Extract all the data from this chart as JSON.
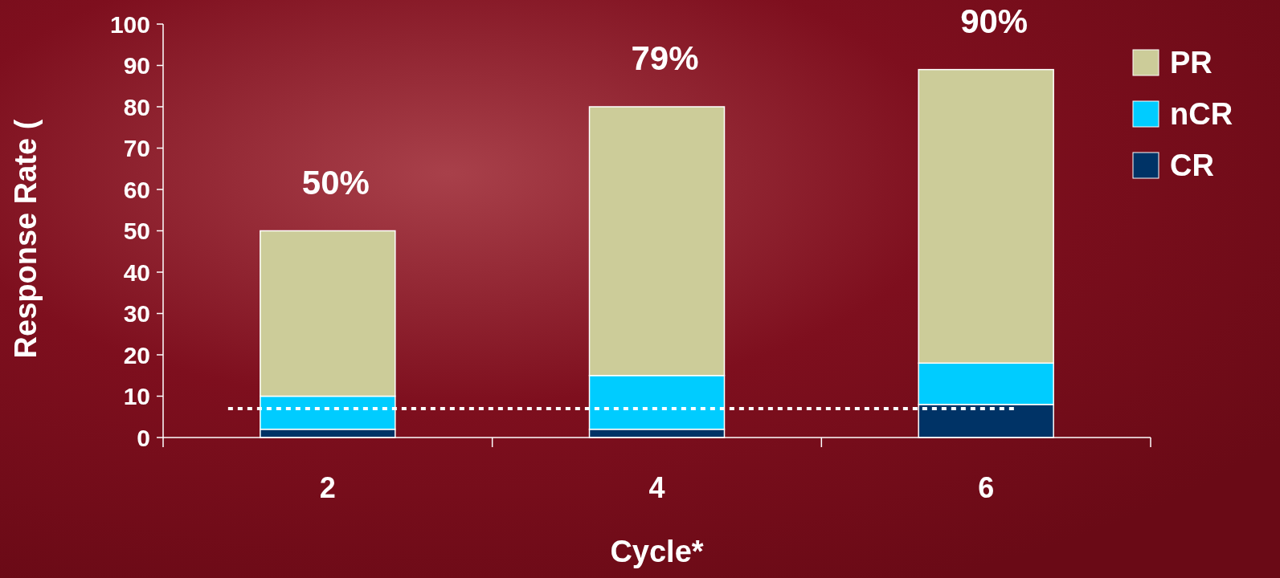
{
  "chart_data": {
    "type": "bar",
    "stacked": true,
    "xlabel": "Cycle*",
    "ylabel": "Response Rate (",
    "categories": [
      "2",
      "4",
      "6"
    ],
    "series": [
      {
        "name": "CR",
        "color": "#003366",
        "values": [
          2,
          2,
          8
        ]
      },
      {
        "name": "nCR",
        "color": "#00ccff",
        "values": [
          8,
          13,
          10
        ]
      },
      {
        "name": "PR",
        "color": "#cccc99",
        "values": [
          40,
          65,
          71
        ]
      }
    ],
    "totals": [
      "50%",
      "79%",
      "90%"
    ],
    "ylim": [
      0,
      100
    ],
    "yticks": [
      0,
      10,
      20,
      30,
      40,
      50,
      60,
      70,
      80,
      90,
      100
    ],
    "ref_lines": [
      {
        "axis": "y",
        "value": 7,
        "color": "#ffffff",
        "line_style": "dotted"
      }
    ],
    "legend": "top right",
    "grid": false
  }
}
